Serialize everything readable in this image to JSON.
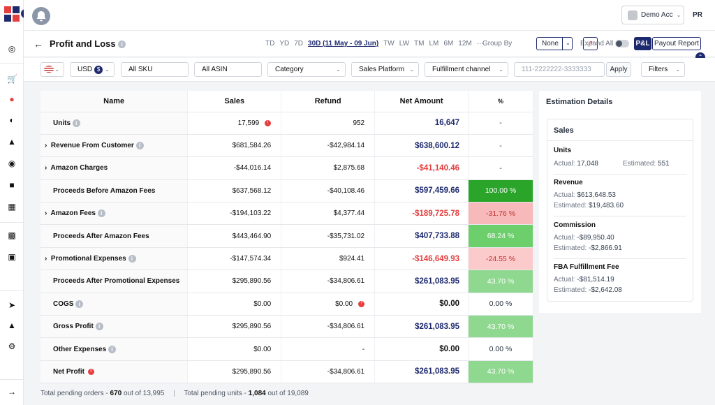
{
  "topbar": {
    "account_label": "Demo Acc",
    "initials": "PR"
  },
  "header": {
    "title": "Profit and Loss",
    "periods": [
      "TD",
      "YD",
      "7D",
      "30D (11 May - 09 Jun)",
      "TW",
      "LW",
      "TM",
      "LM",
      "6M",
      "12M",
      "···"
    ],
    "group_by_label": "Group By",
    "group_by_value": "None",
    "expand_all_label": "Expand All",
    "pl_label": "P&L",
    "payout_label": "Payout Report"
  },
  "filters": {
    "currency": "USD",
    "currency_symbol": "$",
    "sku": "All SKU",
    "asin": "All ASIN",
    "category": "Category",
    "sales_platform": "Sales Platform",
    "fulfillment": "Fulfillment channel",
    "phone_placeholder": "111-2222222-3333333",
    "apply": "Apply",
    "filters_label": "Filters"
  },
  "table": {
    "headers": [
      "Name",
      "Sales",
      "Refund",
      "Net Amount",
      "%"
    ],
    "rows": [
      {
        "name": "Units",
        "sales": "17,599",
        "refund": "952",
        "net": "16,647",
        "pct": "-"
      },
      {
        "name": "Revenue From Customer",
        "sales": "$681,584.26",
        "refund": "-$42,984.14",
        "net": "$638,600.12",
        "pct": "-"
      },
      {
        "name": "Amazon Charges",
        "sales": "-$44,016.14",
        "refund": "$2,875.68",
        "net": "-$41,140.46",
        "pct": "-"
      },
      {
        "name": "Proceeds Before Amazon Fees",
        "sales": "$637,568.12",
        "refund": "-$40,108.46",
        "net": "$597,459.66",
        "pct": "100.00 %"
      },
      {
        "name": "Amazon Fees",
        "sales": "-$194,103.22",
        "refund": "$4,377.44",
        "net": "-$189,725.78",
        "pct": "-31.76 %"
      },
      {
        "name": "Proceeds After Amazon Fees",
        "sales": "$443,464.90",
        "refund": "-$35,731.02",
        "net": "$407,733.88",
        "pct": "68.24 %"
      },
      {
        "name": "Promotional Expenses",
        "sales": "-$147,574.34",
        "refund": "$924.41",
        "net": "-$146,649.93",
        "pct": "-24.55 %"
      },
      {
        "name": "Proceeds After Promotional Expenses",
        "sales": "$295,890.56",
        "refund": "-$34,806.61",
        "net": "$261,083.95",
        "pct": "43.70 %"
      },
      {
        "name": "COGS",
        "sales": "$0.00",
        "refund": "$0.00",
        "net": "$0.00",
        "pct": "0.00 %"
      },
      {
        "name": "Gross Profit",
        "sales": "$295,890.56",
        "refund": "-$34,806.61",
        "net": "$261,083.95",
        "pct": "43.70 %"
      },
      {
        "name": "Other Expenses",
        "sales": "$0.00",
        "refund": "-",
        "net": "$0.00",
        "pct": "0.00 %"
      },
      {
        "name": "Net Profit",
        "sales": "$295,890.56",
        "refund": "-$34,806.61",
        "net": "$261,083.95",
        "pct": "43.70 %"
      }
    ]
  },
  "estimation": {
    "title": "Estimation Details",
    "card_title": "Sales",
    "units": {
      "label": "Units",
      "actual_label": "Actual:",
      "actual": "17,048",
      "estimated_label": "Estimated:",
      "estimated": "551"
    },
    "revenue": {
      "label": "Revenue",
      "actual_label": "Actual:",
      "actual": "$613,648.53",
      "estimated_label": "Estimated:",
      "estimated": "$19,483.60"
    },
    "commission": {
      "label": "Commission",
      "actual_label": "Actual:",
      "actual": "-$89,950.40",
      "estimated_label": "Estimated:",
      "estimated": "-$2,866.91"
    },
    "fba": {
      "label": "FBA Fulfillment Fee",
      "actual_label": "Actual:",
      "actual": "-$81,514.19",
      "estimated_label": "Estimated:",
      "estimated": "-$2,642.08"
    }
  },
  "footer": {
    "orders_label": "Total pending orders -",
    "orders_value": "670",
    "orders_total": "out of 13,995",
    "units_label": "Total pending units -",
    "units_value": "1,084",
    "units_total": "out of 19,089"
  },
  "colors": {
    "brand_navy": "#1e2a6e",
    "positive_net": "#1e2a6e",
    "negative_net": "#e53e3e",
    "pct_dark_green": "#2aa52a",
    "pct_green": "#6ccf6c",
    "pct_light_green": "#8fd88f",
    "pct_pink": "#f7b9b9"
  }
}
